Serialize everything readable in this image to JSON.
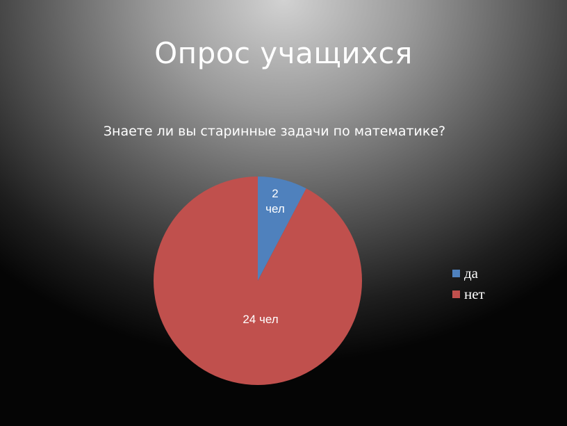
{
  "slide": {
    "title": "Опрос учащихся"
  },
  "chart_data": {
    "type": "pie",
    "title": "Знаете ли вы старинные задачи по математике?",
    "categories": [
      "да",
      "нет"
    ],
    "values": [
      2,
      24
    ],
    "data_labels": [
      "2\nчел",
      "24 чел"
    ],
    "colors": [
      "#4f81bd",
      "#c0504d"
    ],
    "legend_position": "right"
  }
}
